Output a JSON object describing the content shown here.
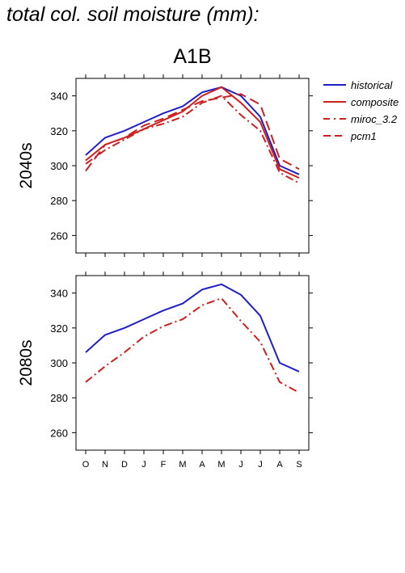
{
  "header": {
    "title": "total col. soil moisture (mm):",
    "scenario": "A1B"
  },
  "colors": {
    "historical": "#1f1fc8",
    "projection": "#cc1f1f"
  },
  "chart_data": {
    "type": "line",
    "months": [
      "O",
      "N",
      "D",
      "J",
      "F",
      "M",
      "A",
      "M",
      "J",
      "J",
      "A",
      "S"
    ],
    "ylim": [
      250,
      350
    ],
    "yticks": [
      260,
      280,
      300,
      320,
      340
    ],
    "legend": [
      {
        "name": "historical",
        "color": "#1f1fc8",
        "style": "solid"
      },
      {
        "name": "composite",
        "color": "#cc1f1f",
        "style": "solid"
      },
      {
        "name": "miroc_3.2",
        "color": "#cc1f1f",
        "style": "dashdot"
      },
      {
        "name": "pcm1",
        "color": "#cc1f1f",
        "style": "dashed"
      }
    ],
    "panels": [
      {
        "label": "2040s",
        "series": [
          {
            "name": "historical",
            "values": [
              306,
              316,
              320,
              325,
              330,
              334,
              342,
              345,
              340,
              328,
              300,
              295
            ]
          },
          {
            "name": "composite",
            "values": [
              303,
              312,
              316,
              321,
              326,
              331,
              340,
              345,
              336,
              325,
              298,
              293
            ]
          },
          {
            "name": "miroc_3.2",
            "values": [
              301,
              309,
              315,
              321,
              324,
              328,
              336,
              340,
              329,
              320,
              296,
              290
            ]
          },
          {
            "name": "pcm1",
            "values": [
              297,
              312,
              316,
              323,
              327,
              332,
              337,
              339,
              341,
              335,
              304,
              298
            ]
          }
        ]
      },
      {
        "label": "2080s",
        "series": [
          {
            "name": "historical",
            "values": [
              306,
              316,
              320,
              325,
              330,
              334,
              342,
              345,
              339,
              327,
              300,
              295
            ]
          },
          {
            "name": "miroc_3.2",
            "values": [
              289,
              298,
              306,
              315,
              321,
              325,
              333,
              337,
              324,
              312,
              289,
              283
            ]
          }
        ]
      }
    ]
  }
}
